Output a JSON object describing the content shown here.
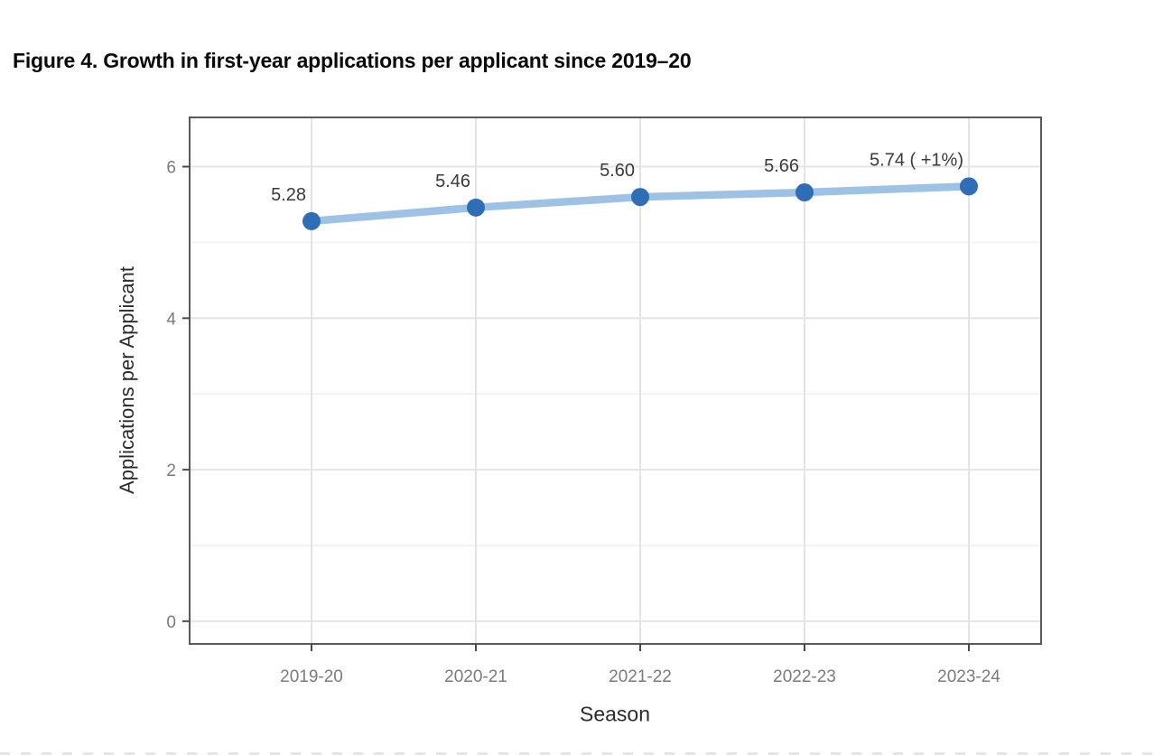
{
  "page_title": "Figure 4. Growth in first-year applications per applicant since 2019–20",
  "chart_data": {
    "type": "line",
    "title": "Figure 4. Growth in first-year applications per applicant since 2019–20",
    "categories": [
      "2019-20",
      "2020-21",
      "2021-22",
      "2022-23",
      "2023-24"
    ],
    "series": [
      {
        "name": "Applications per Applicant",
        "values": [
          5.28,
          5.46,
          5.6,
          5.66,
          5.74
        ],
        "point_labels": [
          "5.28",
          "5.46",
          "5.60",
          "5.66",
          "5.74 ( +1%)"
        ]
      }
    ],
    "xlabel": "Season",
    "ylabel": "Applications per Applicant",
    "ylim": [
      -0.3,
      6.65
    ],
    "yticks": [
      0,
      2,
      4,
      6
    ],
    "ytick_labels": [
      "0",
      "2",
      "4",
      "6"
    ],
    "yminor_ticks": [
      1,
      3,
      5
    ],
    "grid": "major horizontal + minor horizontal + vertical at categories",
    "legend_position": "none",
    "colors": {
      "line": "#9DC2E5",
      "point": "#2F6DB6",
      "data_label": "#3a3a3a",
      "tick_label": "#7b7b7b",
      "axis_title": "#2b2b2b",
      "panel_border": "#59595b",
      "grid_major": "#e4e4e6",
      "grid_minor": "#f1f1f2",
      "tick_mark": "#4a4a4a"
    }
  }
}
